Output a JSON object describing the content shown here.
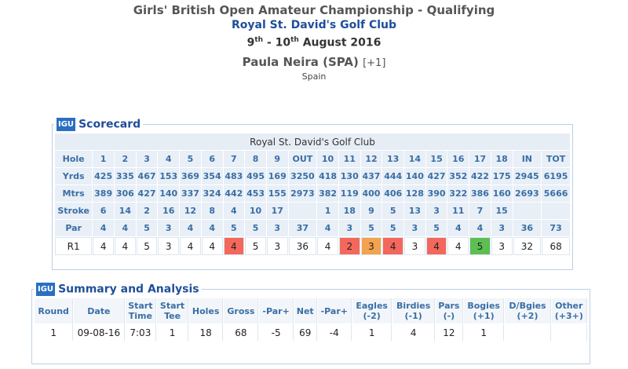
{
  "header": {
    "title": "Girls' British Open Amateur Championship - Qualifying",
    "club": "Royal St. David's Golf Club",
    "date": [
      "9",
      "th",
      " - 10",
      "th",
      " August 2016"
    ]
  },
  "player": {
    "name": "Paula Neira (SPA)",
    "score": "[+1]",
    "country": "Spain"
  },
  "scorecard": {
    "logo": "IGU",
    "title": "Scorecard",
    "course": "Royal St. David's Golf Club",
    "rows": [
      {
        "label": "Hole",
        "cells": [
          1,
          2,
          3,
          4,
          5,
          6,
          7,
          8,
          9,
          "OUT",
          10,
          11,
          12,
          13,
          14,
          15,
          16,
          17,
          18,
          "IN",
          "TOT"
        ]
      },
      {
        "label": "Yrds",
        "cells": [
          425,
          335,
          467,
          153,
          369,
          354,
          483,
          495,
          169,
          3250,
          418,
          130,
          437,
          444,
          140,
          427,
          352,
          422,
          175,
          2945,
          6195
        ]
      },
      {
        "label": "Mtrs",
        "cells": [
          389,
          306,
          427,
          140,
          337,
          324,
          442,
          453,
          155,
          2973,
          382,
          119,
          400,
          406,
          128,
          390,
          322,
          386,
          160,
          2693,
          5666
        ]
      },
      {
        "label": "Stroke",
        "cells": [
          6,
          14,
          2,
          16,
          12,
          8,
          4,
          10,
          17,
          null,
          1,
          18,
          9,
          5,
          13,
          3,
          11,
          7,
          15,
          null,
          null
        ]
      },
      {
        "label": "Par",
        "cells": [
          4,
          4,
          5,
          3,
          4,
          4,
          5,
          5,
          3,
          37,
          4,
          3,
          5,
          5,
          3,
          5,
          4,
          4,
          3,
          36,
          73
        ]
      },
      {
        "label": "R1",
        "cells": [
          4,
          4,
          5,
          3,
          4,
          4,
          4,
          5,
          3,
          36,
          4,
          2,
          3,
          4,
          3,
          4,
          4,
          5,
          3,
          32,
          68
        ]
      }
    ]
  },
  "summary": {
    "logo": "IGU",
    "title": "Summary and Analysis",
    "headers": [
      [
        "Round"
      ],
      [
        "Date"
      ],
      [
        "Start",
        "Time"
      ],
      [
        "Start",
        "Tee"
      ],
      [
        "Holes"
      ],
      [
        "Gross"
      ],
      [
        "-Par+"
      ],
      [
        "Net"
      ],
      [
        "-Par+"
      ],
      [
        "Eagles",
        "(-2)"
      ],
      [
        "Birdies",
        "(-1)"
      ],
      [
        "Pars",
        "(-)"
      ],
      [
        "Bogies",
        "(+1)"
      ],
      [
        "D/Bgies",
        "(+2)"
      ],
      [
        "Other",
        "(+3+)"
      ]
    ],
    "row": [
      1,
      "09-08-16",
      "7:03",
      1,
      18,
      68,
      -5,
      69,
      -4,
      1,
      4,
      12,
      1,
      null,
      null
    ]
  }
}
